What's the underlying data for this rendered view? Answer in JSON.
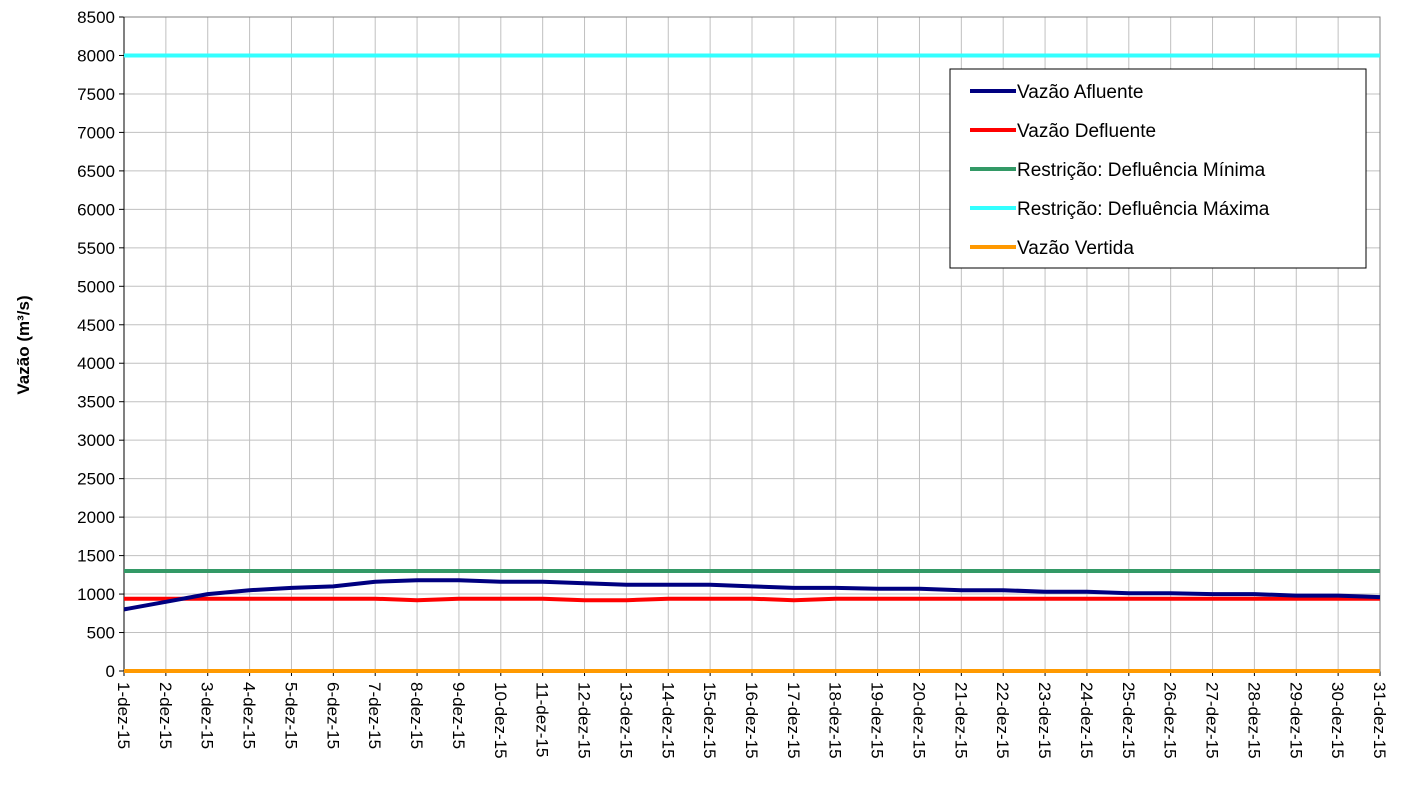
{
  "chart_data": {
    "type": "line",
    "title": "",
    "xlabel": "",
    "ylabel": "Vazão (m³/s)",
    "ylim": [
      0,
      8500
    ],
    "ytick_step": 500,
    "grid": true,
    "legend_position": "top-right",
    "categories": [
      "1-dez-15",
      "2-dez-15",
      "3-dez-15",
      "4-dez-15",
      "5-dez-15",
      "6-dez-15",
      "7-dez-15",
      "8-dez-15",
      "9-dez-15",
      "10-dez-15",
      "11-dez-15",
      "12-dez-15",
      "13-dez-15",
      "14-dez-15",
      "15-dez-15",
      "16-dez-15",
      "17-dez-15",
      "18-dez-15",
      "19-dez-15",
      "20-dez-15",
      "21-dez-15",
      "22-dez-15",
      "23-dez-15",
      "24-dez-15",
      "25-dez-15",
      "26-dez-15",
      "27-dez-15",
      "28-dez-15",
      "29-dez-15",
      "30-dez-15",
      "31-dez-15"
    ],
    "series": [
      {
        "name": "Vazão Afluente",
        "color": "#000080",
        "values": [
          800,
          900,
          1000,
          1050,
          1080,
          1100,
          1160,
          1180,
          1180,
          1160,
          1160,
          1140,
          1120,
          1120,
          1120,
          1100,
          1080,
          1080,
          1070,
          1070,
          1050,
          1050,
          1030,
          1030,
          1010,
          1010,
          1000,
          1000,
          980,
          980,
          960
        ]
      },
      {
        "name": "Vazão Defluente",
        "color": "#ff0000",
        "values": [
          940,
          940,
          940,
          940,
          940,
          940,
          940,
          920,
          940,
          940,
          940,
          920,
          920,
          940,
          940,
          940,
          920,
          940,
          940,
          940,
          940,
          940,
          940,
          940,
          940,
          940,
          940,
          940,
          940,
          940,
          940
        ]
      },
      {
        "name": "Restrição: Defluência Mínima",
        "color": "#339966",
        "values": [
          1300,
          1300,
          1300,
          1300,
          1300,
          1300,
          1300,
          1300,
          1300,
          1300,
          1300,
          1300,
          1300,
          1300,
          1300,
          1300,
          1300,
          1300,
          1300,
          1300,
          1300,
          1300,
          1300,
          1300,
          1300,
          1300,
          1300,
          1300,
          1300,
          1300,
          1300
        ]
      },
      {
        "name": "Restrição: Defluência Máxima",
        "color": "#33ffff",
        "values": [
          8000,
          8000,
          8000,
          8000,
          8000,
          8000,
          8000,
          8000,
          8000,
          8000,
          8000,
          8000,
          8000,
          8000,
          8000,
          8000,
          8000,
          8000,
          8000,
          8000,
          8000,
          8000,
          8000,
          8000,
          8000,
          8000,
          8000,
          8000,
          8000,
          8000,
          8000
        ]
      },
      {
        "name": "Vazão Vertida",
        "color": "#ff9900",
        "values": [
          0,
          0,
          0,
          0,
          0,
          0,
          0,
          0,
          0,
          0,
          0,
          0,
          0,
          0,
          0,
          0,
          0,
          0,
          0,
          0,
          0,
          0,
          0,
          0,
          0,
          0,
          0,
          0,
          0,
          0,
          0
        ]
      }
    ]
  }
}
